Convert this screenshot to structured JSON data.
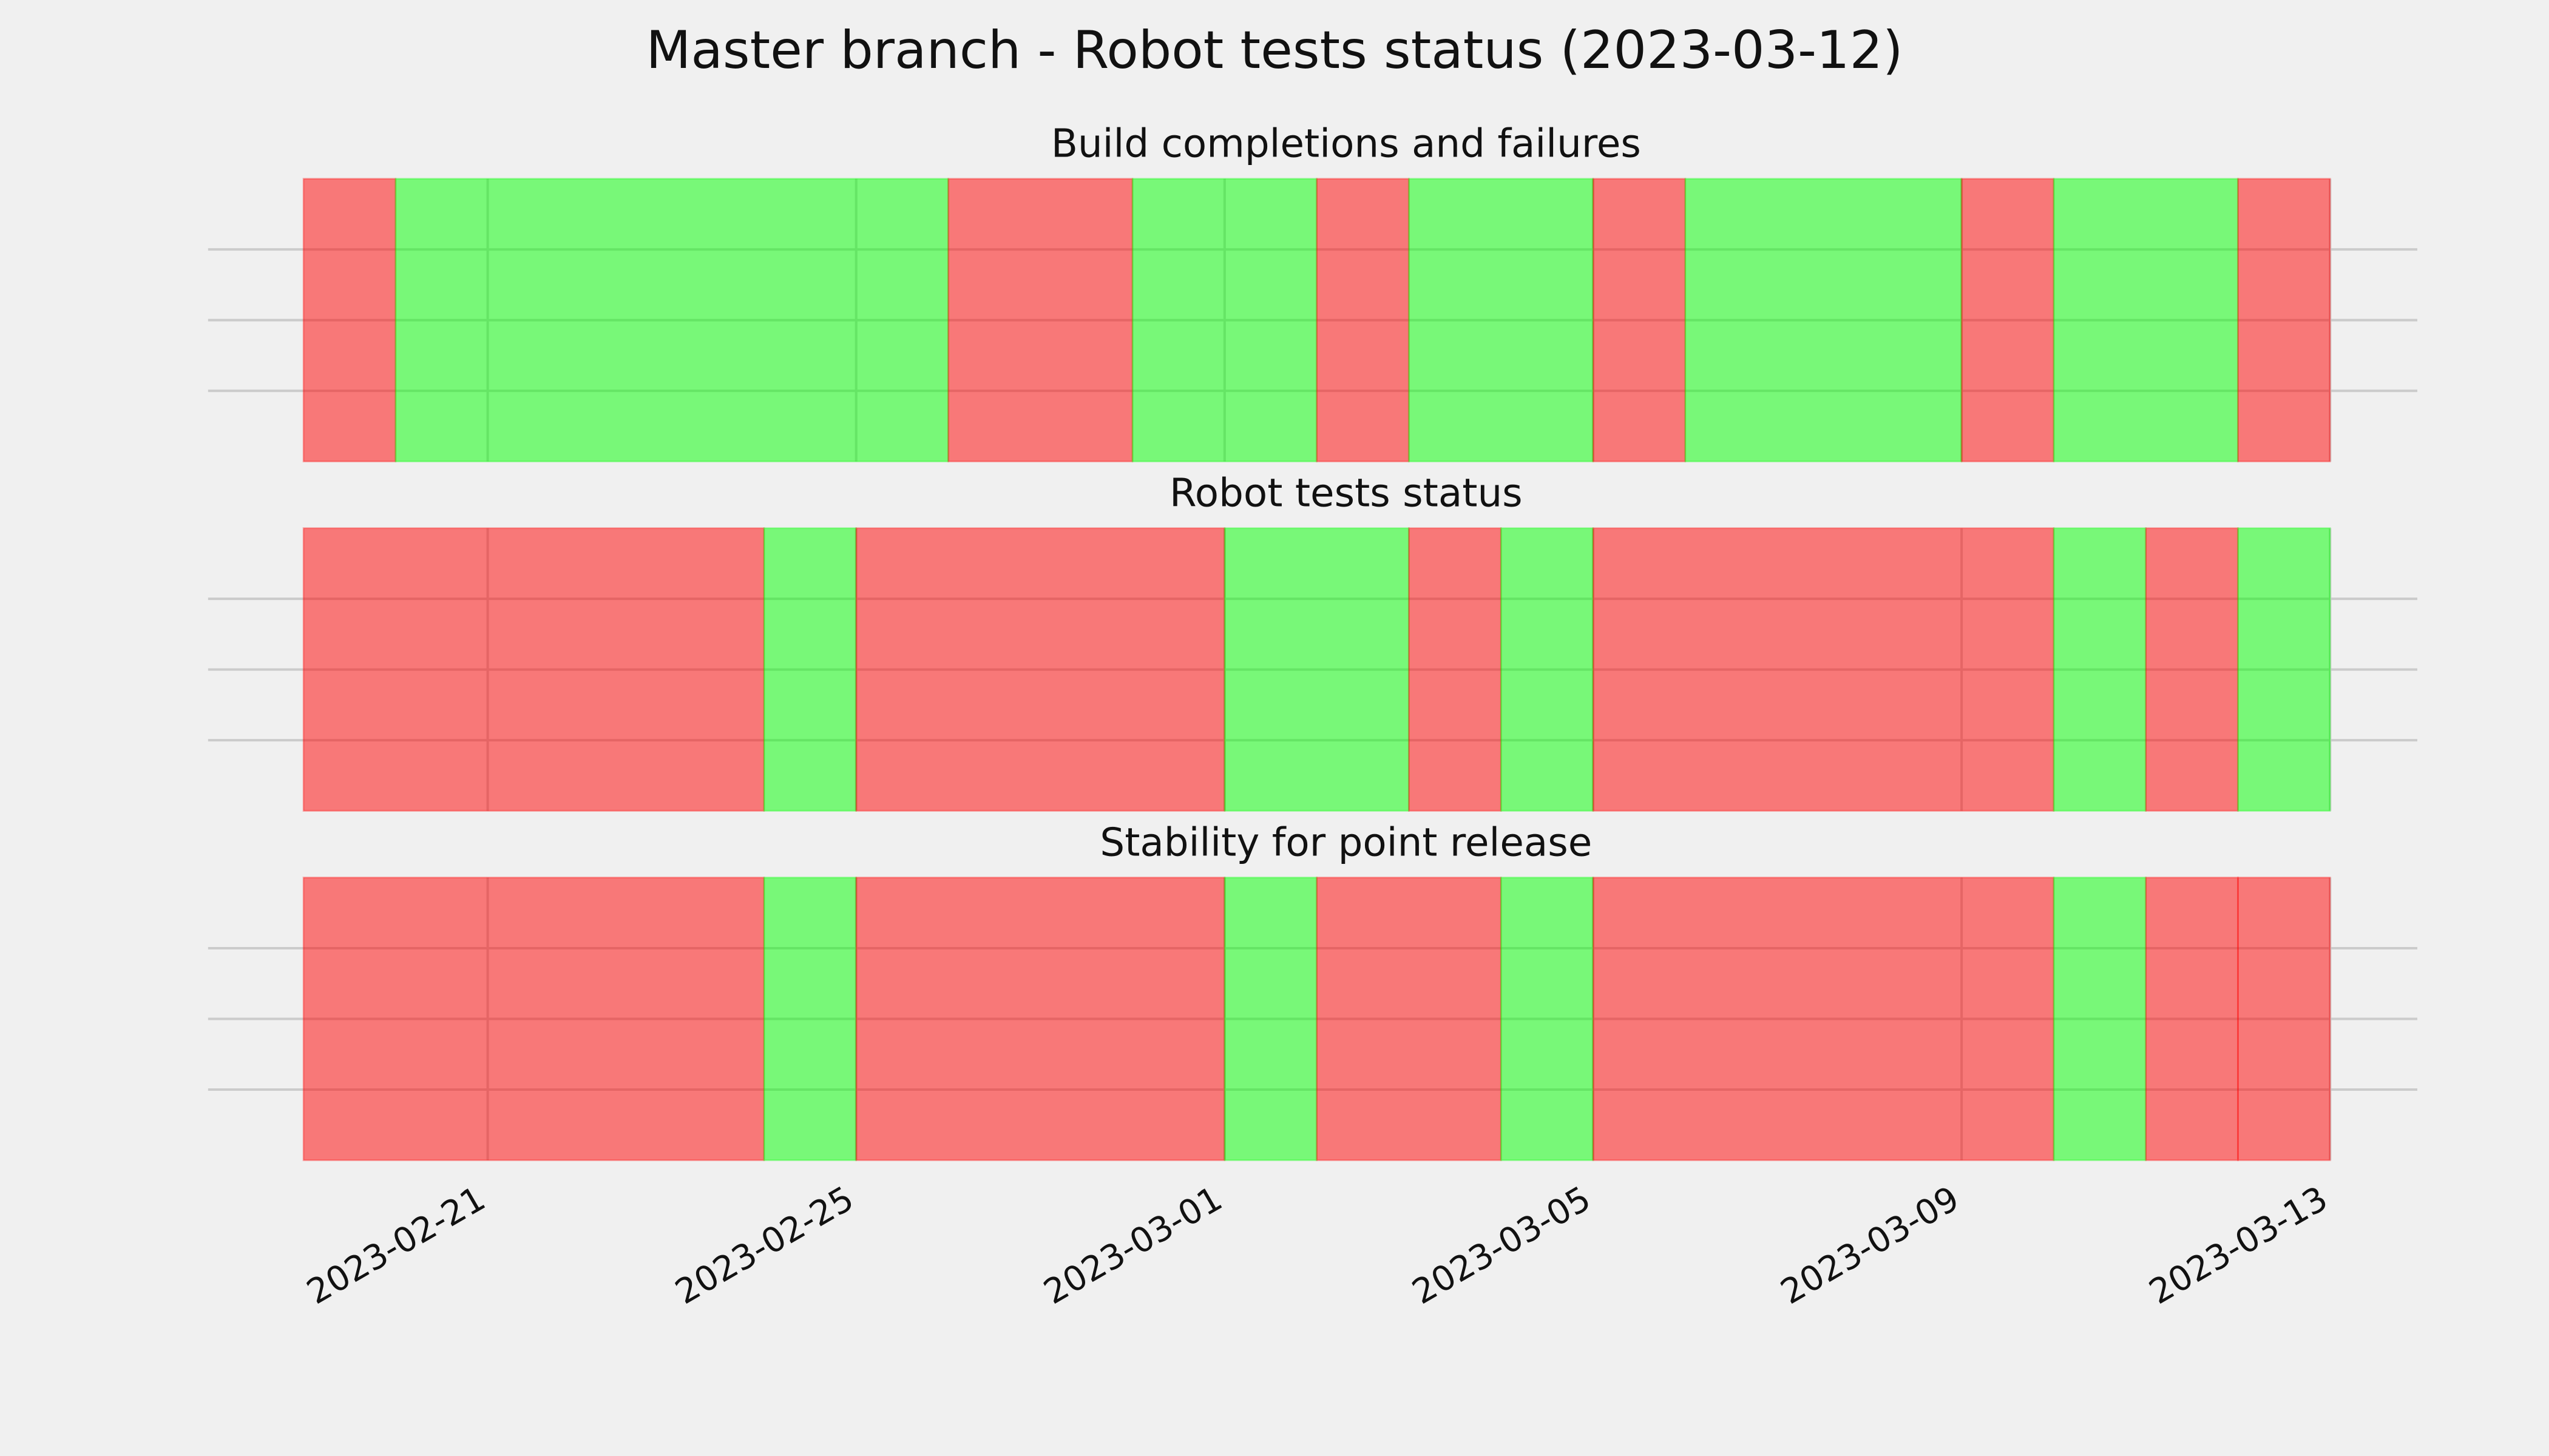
{
  "title": "Master branch - Robot tests status (2023-03-12)",
  "chart_data": [
    {
      "type": "timeline",
      "title": "Build completions and failures",
      "bins": [
        "2023-02-19",
        "2023-02-20",
        "2023-02-26",
        "2023-02-28",
        "2023-03-02",
        "2023-03-03",
        "2023-03-05",
        "2023-03-06",
        "2023-03-09",
        "2023-03-10",
        "2023-03-12",
        "2023-03-13"
      ],
      "colors": [
        "#ff0000",
        "#00ff00",
        "#ff0000",
        "#00ff00",
        "#ff0000",
        "#00ff00",
        "#ff0000",
        "#00ff00",
        "#ff0000",
        "#00ff00",
        "#ff0000"
      ],
      "alpha": 0.5,
      "xlim": [
        "2023-02-18",
        "2023-03-14"
      ],
      "xticks": [
        "2023-02-21",
        "2023-02-25",
        "2023-03-01",
        "2023-03-05",
        "2023-03-09",
        "2023-03-13"
      ],
      "ylim": [
        0,
        1
      ],
      "yticks": [
        0.25,
        0.5,
        0.75
      ],
      "grid": true
    },
    {
      "type": "timeline",
      "title": "Robot tests status",
      "bins": [
        "2023-02-19",
        "2023-02-24",
        "2023-02-25",
        "2023-03-01",
        "2023-03-03",
        "2023-03-04",
        "2023-03-05",
        "2023-03-10",
        "2023-03-11",
        "2023-03-12",
        "2023-03-13"
      ],
      "colors": [
        "#ff0000",
        "#00ff00",
        "#ff0000",
        "#00ff00",
        "#ff0000",
        "#00ff00",
        "#ff0000",
        "#00ff00",
        "#ff0000",
        "#00ff00"
      ],
      "alpha": 0.5,
      "xlim": [
        "2023-02-18",
        "2023-03-14"
      ],
      "xticks": [
        "2023-02-21",
        "2023-02-25",
        "2023-03-01",
        "2023-03-05",
        "2023-03-09",
        "2023-03-13"
      ],
      "ylim": [
        0,
        1
      ],
      "yticks": [
        0.25,
        0.5,
        0.75
      ],
      "grid": true
    },
    {
      "type": "timeline",
      "title": "Stability for point release",
      "bins": [
        "2023-02-19",
        "2023-02-24",
        "2023-02-25",
        "2023-03-01",
        "2023-03-02",
        "2023-03-04",
        "2023-03-05",
        "2023-03-10",
        "2023-03-11",
        "2023-03-12",
        "2023-03-13"
      ],
      "colors": [
        "#ff0000",
        "#00ff00",
        "#ff0000",
        "#00ff00",
        "#ff0000",
        "#00ff00",
        "#ff0000",
        "#00ff00",
        "#ff0000",
        "#ff0000"
      ],
      "alpha": 0.5,
      "xlim": [
        "2023-02-18",
        "2023-03-14"
      ],
      "xticks": [
        "2023-02-21",
        "2023-02-25",
        "2023-03-01",
        "2023-03-05",
        "2023-03-09",
        "2023-03-13"
      ],
      "ylim": [
        0,
        1
      ],
      "yticks": [
        0.25,
        0.5,
        0.75
      ],
      "grid": true
    }
  ]
}
